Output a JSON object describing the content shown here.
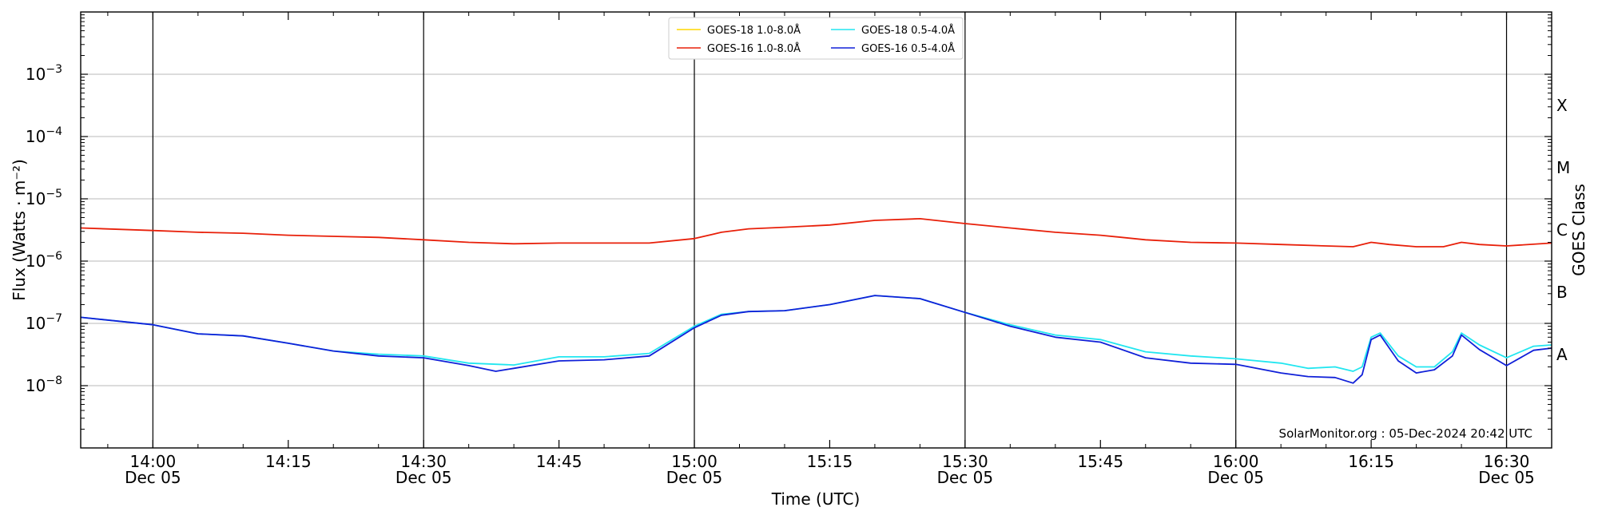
{
  "chart_data": {
    "type": "line",
    "xlabel": "Time (UTC)",
    "ylabel": "Flux (Watts · m⁻²)",
    "y2label": "GOES Class",
    "yscale": "log",
    "xlim": [
      "13:52",
      "16:35"
    ],
    "ylim": [
      1e-09,
      0.01
    ],
    "grid": "horizontal",
    "legend_position": "top-center",
    "credit": "SolarMonitor.org : 05-Dec-2024 20:42 UTC",
    "x_ticks": [
      {
        "time": "14:00",
        "label": "14:00",
        "date": "Dec 05",
        "major": true
      },
      {
        "time": "14:15",
        "label": "14:15",
        "date": "",
        "major": false
      },
      {
        "time": "14:30",
        "label": "14:30",
        "date": "Dec 05",
        "major": true
      },
      {
        "time": "14:45",
        "label": "14:45",
        "date": "",
        "major": false
      },
      {
        "time": "15:00",
        "label": "15:00",
        "date": "Dec 05",
        "major": true
      },
      {
        "time": "15:15",
        "label": "15:15",
        "date": "",
        "major": false
      },
      {
        "time": "15:30",
        "label": "15:30",
        "date": "Dec 05",
        "major": true
      },
      {
        "time": "15:45",
        "label": "15:45",
        "date": "",
        "major": false
      },
      {
        "time": "16:00",
        "label": "16:00",
        "date": "Dec 05",
        "major": true
      },
      {
        "time": "16:15",
        "label": "16:15",
        "date": "",
        "major": false
      },
      {
        "time": "16:30",
        "label": "16:30",
        "date": "Dec 05",
        "major": true
      }
    ],
    "y_ticks": [
      {
        "exp": -3,
        "base": "10",
        "sup": "−3"
      },
      {
        "exp": -4,
        "base": "10",
        "sup": "−4"
      },
      {
        "exp": -5,
        "base": "10",
        "sup": "−5"
      },
      {
        "exp": -6,
        "base": "10",
        "sup": "−6"
      },
      {
        "exp": -7,
        "base": "10",
        "sup": "−7"
      },
      {
        "exp": -8,
        "base": "10",
        "sup": "−8"
      }
    ],
    "goes_classes": [
      {
        "label": "X",
        "exp": -3.5
      },
      {
        "label": "M",
        "exp": -4.5
      },
      {
        "label": "C",
        "exp": -5.5
      },
      {
        "label": "B",
        "exp": -6.5
      },
      {
        "label": "A",
        "exp": -7.5
      }
    ],
    "series": [
      {
        "name": "GOES-18 1.0-8.0Å",
        "color": "#ffd700",
        "x": [],
        "y": []
      },
      {
        "name": "GOES-16 1.0-8.0Å",
        "color": "#e8200a",
        "x": [
          "13:52",
          "14:00",
          "14:05",
          "14:10",
          "14:15",
          "14:20",
          "14:25",
          "14:30",
          "14:35",
          "14:40",
          "14:45",
          "14:50",
          "14:55",
          "15:00",
          "15:03",
          "15:06",
          "15:10",
          "15:15",
          "15:20",
          "15:25",
          "15:30",
          "15:35",
          "15:40",
          "15:45",
          "15:50",
          "15:55",
          "16:00",
          "16:05",
          "16:10",
          "16:13",
          "16:15",
          "16:17",
          "16:20",
          "16:23",
          "16:25",
          "16:27",
          "16:30",
          "16:35"
        ],
        "y": [
          3.4e-06,
          3.1e-06,
          2.9e-06,
          2.8e-06,
          2.6e-06,
          2.5e-06,
          2.4e-06,
          2.2e-06,
          2e-06,
          1.9e-06,
          1.95e-06,
          1.95e-06,
          1.95e-06,
          2.3e-06,
          2.9e-06,
          3.3e-06,
          3.5e-06,
          3.8e-06,
          4.5e-06,
          4.8e-06,
          4e-06,
          3.4e-06,
          2.9e-06,
          2.6e-06,
          2.2e-06,
          2e-06,
          1.95e-06,
          1.85e-06,
          1.75e-06,
          1.7e-06,
          2e-06,
          1.85e-06,
          1.7e-06,
          1.7e-06,
          2e-06,
          1.85e-06,
          1.75e-06,
          1.95e-06
        ]
      },
      {
        "name": "GOES-18 0.5-4.0Å",
        "color": "#22e6f0",
        "x": [
          "13:52",
          "14:00",
          "14:05",
          "14:10",
          "14:15",
          "14:20",
          "14:25",
          "14:30",
          "14:35",
          "14:40",
          "14:45",
          "14:50",
          "14:55",
          "15:00",
          "15:03",
          "15:06",
          "15:10",
          "15:15",
          "15:20",
          "15:25",
          "15:30",
          "15:35",
          "15:40",
          "15:45",
          "15:50",
          "15:55",
          "16:00",
          "16:05",
          "16:08",
          "16:11",
          "16:13",
          "16:14",
          "16:15",
          "16:16",
          "16:18",
          "16:20",
          "16:22",
          "16:24",
          "16:25",
          "16:27",
          "16:30",
          "16:33",
          "16:35"
        ],
        "y": [
          1.25e-07,
          9.5e-08,
          6.8e-08,
          6.3e-08,
          4.8e-08,
          3.6e-08,
          3.2e-08,
          3e-08,
          2.3e-08,
          2.15e-08,
          2.9e-08,
          2.9e-08,
          3.3e-08,
          9e-08,
          1.4e-07,
          1.55e-07,
          1.6e-07,
          2e-07,
          2.8e-07,
          2.5e-07,
          1.5e-07,
          9.5e-08,
          6.5e-08,
          5.5e-08,
          3.5e-08,
          3e-08,
          2.7e-08,
          2.3e-08,
          1.9e-08,
          2e-08,
          1.7e-08,
          2e-08,
          6e-08,
          7e-08,
          3e-08,
          2e-08,
          2e-08,
          3.5e-08,
          7e-08,
          4.5e-08,
          2.8e-08,
          4.3e-08,
          4.5e-08
        ]
      },
      {
        "name": "GOES-16 0.5-4.0Å",
        "color": "#1020d8",
        "x": [
          "13:52",
          "14:00",
          "14:05",
          "14:10",
          "14:15",
          "14:20",
          "14:25",
          "14:30",
          "14:35",
          "14:38",
          "14:40",
          "14:45",
          "14:50",
          "14:55",
          "15:00",
          "15:03",
          "15:06",
          "15:10",
          "15:15",
          "15:20",
          "15:25",
          "15:30",
          "15:35",
          "15:40",
          "15:45",
          "15:50",
          "15:55",
          "16:00",
          "16:05",
          "16:08",
          "16:11",
          "16:13",
          "16:14",
          "16:15",
          "16:16",
          "16:18",
          "16:20",
          "16:22",
          "16:24",
          "16:25",
          "16:27",
          "16:30",
          "16:33",
          "16:35"
        ],
        "y": [
          1.25e-07,
          9.5e-08,
          6.8e-08,
          6.3e-08,
          4.8e-08,
          3.6e-08,
          3e-08,
          2.8e-08,
          2.1e-08,
          1.7e-08,
          1.9e-08,
          2.5e-08,
          2.6e-08,
          3e-08,
          8.5e-08,
          1.35e-07,
          1.55e-07,
          1.6e-07,
          2e-07,
          2.8e-07,
          2.5e-07,
          1.5e-07,
          9e-08,
          6e-08,
          5e-08,
          2.8e-08,
          2.3e-08,
          2.2e-08,
          1.6e-08,
          1.4e-08,
          1.35e-08,
          1.1e-08,
          1.5e-08,
          5.5e-08,
          6.5e-08,
          2.5e-08,
          1.6e-08,
          1.8e-08,
          3e-08,
          6.5e-08,
          3.8e-08,
          2.1e-08,
          3.7e-08,
          4e-08
        ]
      }
    ]
  }
}
